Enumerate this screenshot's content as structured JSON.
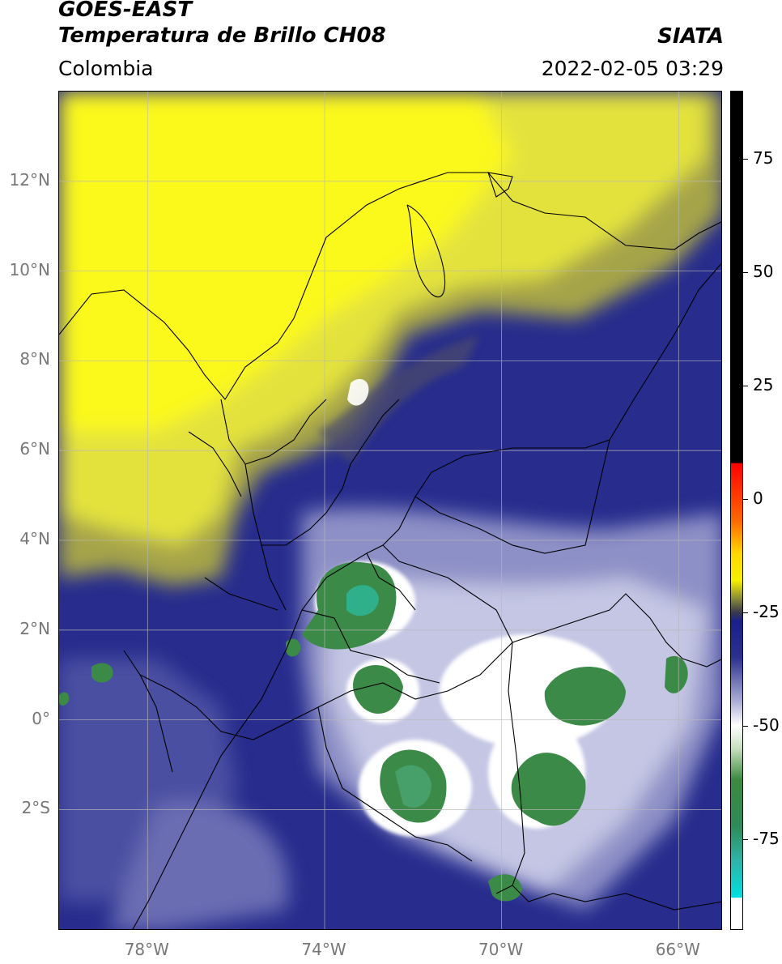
{
  "header": {
    "satellite": "GOES-EAST",
    "product": "Temperatura de Brillo CH08",
    "region": "Colombia",
    "organization": "SIATA",
    "datetime": "2022-02-05 03:29"
  },
  "map": {
    "extent": {
      "lon_min": -80.0,
      "lon_max": -65.0,
      "lat_min": -4.7,
      "lat_max": 14.0
    },
    "lat_ticks": [
      {
        "value": 12,
        "label": "12°N"
      },
      {
        "value": 10,
        "label": "10°N"
      },
      {
        "value": 8,
        "label": "8°N"
      },
      {
        "value": 6,
        "label": "6°N"
      },
      {
        "value": 4,
        "label": "4°N"
      },
      {
        "value": 2,
        "label": "2°N"
      },
      {
        "value": 0,
        "label": "0°"
      },
      {
        "value": -2,
        "label": "2°S"
      }
    ],
    "lon_ticks": [
      {
        "value": -78,
        "label": "78°W"
      },
      {
        "value": -74,
        "label": "74°W"
      },
      {
        "value": -70,
        "label": "70°W"
      },
      {
        "value": -66,
        "label": "66°W"
      }
    ],
    "field": {
      "yellow_region_color": "#e6e63a",
      "blue_region_color": "#262a8c",
      "light_region_color": "#c7c9e6",
      "green_cell_color": "#3c8c46"
    },
    "colorbar": {
      "min": -95,
      "max": 90,
      "ticks": [
        75,
        50,
        25,
        0,
        -25,
        -50,
        -75
      ],
      "tick_labels": [
        "75",
        "50",
        "25",
        "0",
        "-25",
        "-50",
        "-75"
      ]
    }
  }
}
